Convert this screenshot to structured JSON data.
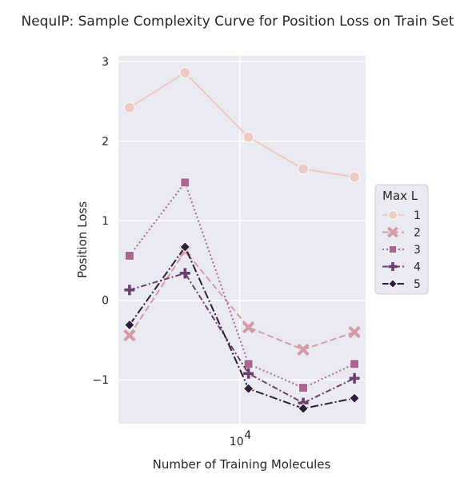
{
  "chart_data": {
    "type": "line",
    "title": "NequIP: Sample Complexity Curve for Position Loss on Train Set",
    "xlabel": "Number of Training Molecules",
    "ylabel": "Position Loss",
    "xscale": "log",
    "x": [
      3000,
      5500,
      11000,
      20000,
      35000
    ],
    "xticks": [
      {
        "value": 10000,
        "base": "10",
        "exp": "4"
      }
    ],
    "yticks": [
      {
        "value": -1,
        "label": "−1"
      },
      {
        "value": 0,
        "label": "0"
      },
      {
        "value": 1,
        "label": "1"
      },
      {
        "value": 2,
        "label": "2"
      },
      {
        "value": 3,
        "label": "3"
      }
    ],
    "ylim": [
      -1.55,
      3.07
    ],
    "grid": true,
    "legend": {
      "title": "Max L",
      "position": "right"
    },
    "series": [
      {
        "name": "1",
        "color": "#ebcbc3",
        "marker": "circle",
        "dash": "",
        "values": [
          2.42,
          2.86,
          2.05,
          1.65,
          1.55
        ]
      },
      {
        "name": "2",
        "color": "#d59aa5",
        "marker": "x",
        "dash": "8,4",
        "values": [
          -0.44,
          0.62,
          -0.34,
          -0.62,
          -0.4
        ]
      },
      {
        "name": "3",
        "color": "#a8678f",
        "marker": "square",
        "dash": "2,3",
        "values": [
          0.56,
          1.48,
          -0.8,
          -1.1,
          -0.8
        ]
      },
      {
        "name": "4",
        "color": "#6c3f6e",
        "marker": "plus",
        "dash": "7,3,2,3",
        "values": [
          0.13,
          0.34,
          -0.92,
          -1.29,
          -0.98
        ]
      },
      {
        "name": "5",
        "color": "#2e1e3b",
        "marker": "diamond",
        "dash": "10,3,2,3",
        "values": [
          -0.31,
          0.67,
          -1.11,
          -1.36,
          -1.23
        ]
      }
    ]
  }
}
